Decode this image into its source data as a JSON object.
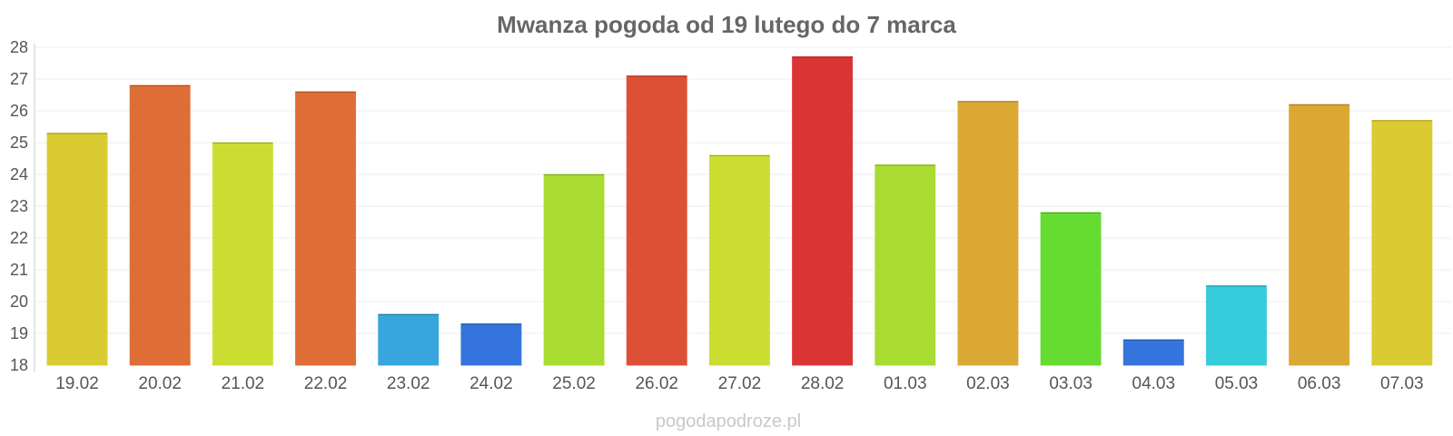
{
  "chart_data": {
    "type": "bar",
    "title": "Mwanza pogoda od 19 lutego do 7 marca",
    "xlabel": "",
    "ylabel": "",
    "ylim": [
      18,
      28
    ],
    "yticks": [
      18,
      19,
      20,
      21,
      22,
      23,
      24,
      25,
      26,
      27,
      28
    ],
    "grid": true,
    "categories": [
      "19.02",
      "20.02",
      "21.02",
      "22.02",
      "23.02",
      "24.02",
      "25.02",
      "26.02",
      "27.02",
      "28.02",
      "01.03",
      "02.03",
      "03.03",
      "04.03",
      "05.03",
      "06.03",
      "07.03"
    ],
    "values": [
      25.3,
      26.8,
      25.0,
      26.6,
      19.6,
      19.3,
      24.0,
      27.1,
      24.6,
      27.7,
      24.3,
      26.3,
      22.8,
      18.8,
      20.5,
      26.2,
      25.7
    ],
    "colors": [
      "#dbcb32",
      "#de6e35",
      "#ccdd32",
      "#de6e35",
      "#36a6dc",
      "#3474dc",
      "#a8dc32",
      "#de5035",
      "#ccdd32",
      "#db3434",
      "#a8dc32",
      "#dca834",
      "#66dc32",
      "#3474dc",
      "#36ccdc",
      "#dca834",
      "#dbcb32"
    ]
  },
  "watermark": "pogodapodroze.pl"
}
